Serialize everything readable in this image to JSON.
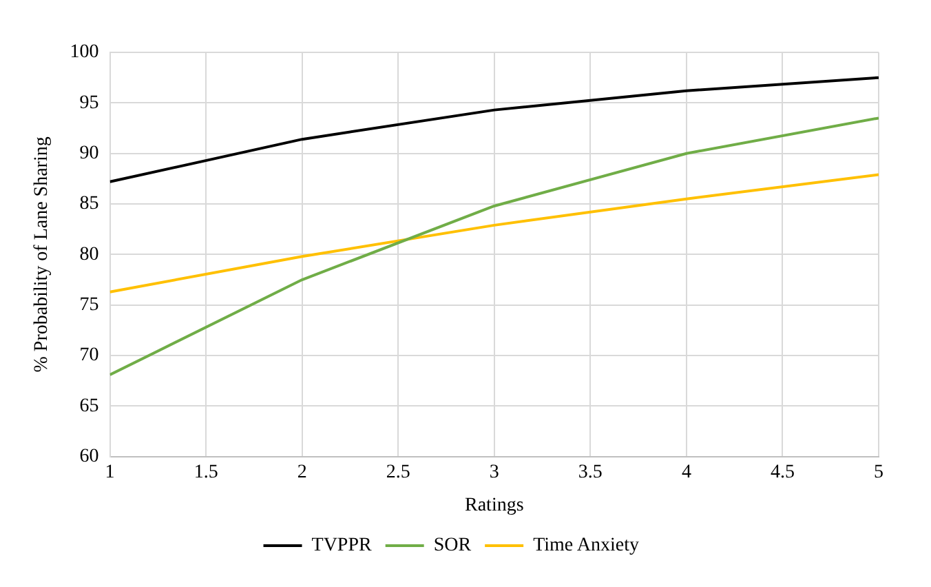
{
  "chart_data": {
    "type": "line",
    "xlabel": "Ratings",
    "ylabel": "% Probability of Lane Sharing",
    "x": [
      1,
      2,
      3,
      4,
      5
    ],
    "series": [
      {
        "name": "TVPPR",
        "color": "#000000",
        "values": [
          87.2,
          91.4,
          94.3,
          96.2,
          97.5
        ]
      },
      {
        "name": "SOR",
        "color": "#70ad47",
        "values": [
          68.1,
          77.5,
          84.8,
          90.0,
          93.5
        ]
      },
      {
        "name": "Time Anxiety",
        "color": "#ffc000",
        "values": [
          76.3,
          79.8,
          82.9,
          85.5,
          87.9
        ]
      }
    ],
    "xlim": [
      1,
      5
    ],
    "xticks": [
      1,
      1.5,
      2,
      2.5,
      3,
      3.5,
      4,
      4.5,
      5
    ],
    "ylim": [
      60,
      100
    ],
    "yticks": [
      60,
      65,
      70,
      75,
      80,
      85,
      90,
      95,
      100
    ],
    "grid": true,
    "legend": "bottom",
    "marker": "none",
    "line_style": "solid"
  }
}
